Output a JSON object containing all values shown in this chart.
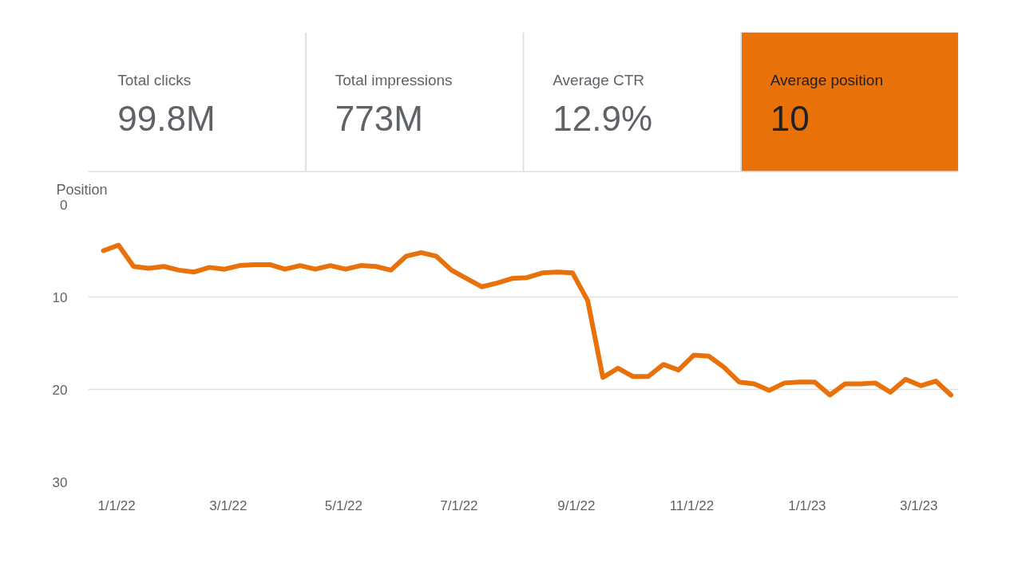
{
  "chart_data": [
    {
      "type": "other",
      "categories": [
        "Total clicks",
        "Total impressions",
        "Average CTR",
        "Average position"
      ],
      "value_labels": [
        "99.8M",
        "773M",
        "12.9%",
        "10"
      ],
      "colors": [
        "#ffffff",
        "#ffffff",
        "#ffffff",
        "#e8710a"
      ]
    },
    {
      "type": "line",
      "ylabel": "Position",
      "color": "#e8710a",
      "grid": "y",
      "marker": "none",
      "line_style": "solid",
      "x": [
        "2021-12-25",
        "2022-01-02",
        "2022-01-10",
        "2022-01-18",
        "2022-01-26",
        "2022-02-03",
        "2022-02-11",
        "2022-02-19",
        "2022-02-27",
        "2022-03-07",
        "2022-03-15",
        "2022-03-23",
        "2022-03-31",
        "2022-04-08",
        "2022-04-16",
        "2022-04-24",
        "2022-05-02",
        "2022-05-10",
        "2022-05-18",
        "2022-05-26",
        "2022-06-03",
        "2022-06-11",
        "2022-06-19",
        "2022-06-27",
        "2022-07-05",
        "2022-07-13",
        "2022-07-21",
        "2022-07-29",
        "2022-08-06",
        "2022-08-14",
        "2022-08-22",
        "2022-08-30",
        "2022-09-07",
        "2022-09-15",
        "2022-09-23",
        "2022-10-01",
        "2022-10-09",
        "2022-10-17",
        "2022-10-25",
        "2022-11-02",
        "2022-11-10",
        "2022-11-18",
        "2022-11-26",
        "2022-12-04",
        "2022-12-12",
        "2022-12-20",
        "2022-12-28",
        "2023-01-05",
        "2023-01-13",
        "2023-01-21",
        "2023-01-29",
        "2023-02-06",
        "2023-02-14",
        "2023-02-22",
        "2023-03-02",
        "2023-03-10",
        "2023-03-18"
      ],
      "values": [
        5.0,
        4.4,
        6.7,
        6.9,
        6.7,
        7.1,
        7.3,
        6.8,
        7.0,
        6.6,
        6.5,
        6.5,
        7.0,
        6.6,
        7.0,
        6.6,
        7.0,
        6.6,
        6.7,
        7.1,
        5.6,
        5.2,
        5.6,
        7.1,
        8.0,
        8.9,
        8.5,
        8.0,
        7.9,
        7.4,
        7.3,
        7.4,
        10.4,
        18.7,
        17.7,
        18.6,
        18.6,
        17.3,
        17.9,
        16.3,
        16.4,
        17.6,
        19.2,
        19.4,
        20.1,
        19.3,
        19.2,
        19.2,
        20.6,
        19.4,
        19.4,
        19.3,
        20.3,
        18.9,
        19.6,
        19.1,
        20.6
      ],
      "xlim": [
        "2021-12-17",
        "2023-03-22"
      ],
      "xticks": [
        {
          "value": "2022-01-01",
          "label": "1/1/22"
        },
        {
          "value": "2022-03-01",
          "label": "3/1/22"
        },
        {
          "value": "2022-05-01",
          "label": "5/1/22"
        },
        {
          "value": "2022-07-01",
          "label": "7/1/22"
        },
        {
          "value": "2022-09-01",
          "label": "9/1/22"
        },
        {
          "value": "2022-11-01",
          "label": "11/1/22"
        },
        {
          "value": "2023-01-01",
          "label": "1/1/23"
        },
        {
          "value": "2023-03-01",
          "label": "3/1/23"
        }
      ],
      "ylim": [
        30,
        0
      ],
      "yticks": [
        0,
        10,
        20,
        30
      ]
    }
  ]
}
